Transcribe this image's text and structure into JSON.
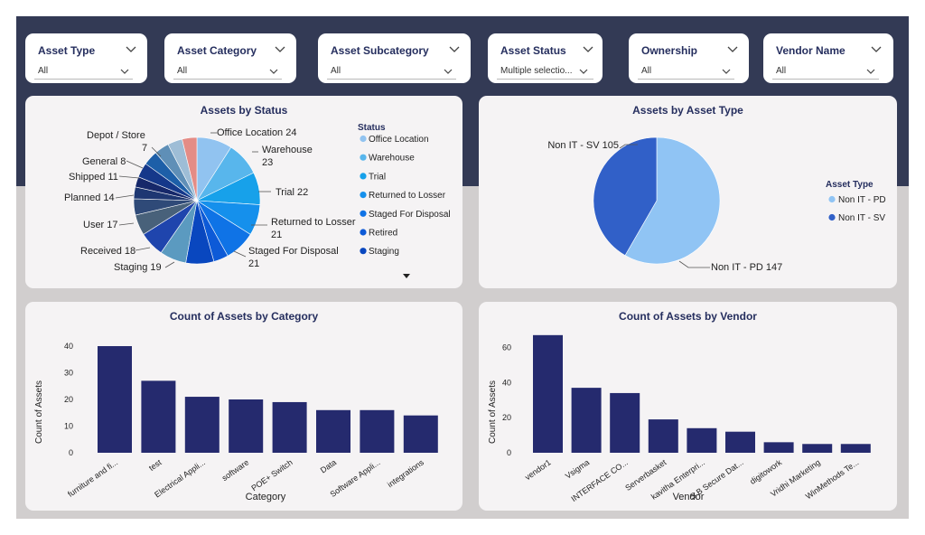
{
  "slicers": [
    {
      "title": "Asset Type",
      "value": "All"
    },
    {
      "title": "Asset Category",
      "value": "All"
    },
    {
      "title": "Asset Subcategory",
      "value": "All"
    },
    {
      "title": "Asset Status",
      "value": "Multiple selectio..."
    },
    {
      "title": "Ownership",
      "value": "All"
    },
    {
      "title": "Vendor Name",
      "value": "All"
    }
  ],
  "colors": {
    "bar": "#252a6e",
    "band": "#333a55",
    "canvas": "#d1cece",
    "panel": "#f5f3f4"
  },
  "chart_data": [
    {
      "type": "pie",
      "title": "Assets by Status",
      "legend_title": "Status",
      "legend_position": "right",
      "slices": [
        {
          "label": "Office Location",
          "value": 24,
          "color": "#91c3f0"
        },
        {
          "label": "Warehouse",
          "value": 23,
          "color": "#58b6ec"
        },
        {
          "label": "Trial",
          "value": 22,
          "color": "#17a1ea"
        },
        {
          "label": "Returned to Losser",
          "value": 21,
          "color": "#1590ec"
        },
        {
          "label": "Staged For Disposal",
          "value": 21,
          "color": "#0f73e6"
        },
        {
          "label": "Retired",
          "value": null,
          "color": "#0d5ad7"
        },
        {
          "label": "Staging",
          "value": 19,
          "color": "#0947bf"
        },
        {
          "label": "",
          "value": 18,
          "color": "#5b9ac0"
        },
        {
          "label": "",
          "value": 17,
          "color": "#1f45ad"
        },
        {
          "label": "",
          "value": 14,
          "color": "#48617a"
        },
        {
          "label": "",
          "value": 11,
          "color": "#2f4a78"
        },
        {
          "label": "",
          "value": 8,
          "color": "#1e3772"
        },
        {
          "label": "",
          "value": 7,
          "color": "#16286a"
        },
        {
          "label": "",
          "value": null,
          "color": "#15388a"
        },
        {
          "label": "",
          "value": null,
          "color": "#1d5fa8"
        },
        {
          "label": "",
          "value": null,
          "color": "#5f8fb7"
        },
        {
          "label": "",
          "value": null,
          "color": "#9ebdd6"
        },
        {
          "label": "",
          "value": null,
          "color": "#e48c86"
        }
      ],
      "data_labels": [
        {
          "text": "Office Location 24"
        },
        {
          "line1": "Warehouse",
          "line2": "23"
        },
        {
          "text": "Trial 22"
        },
        {
          "line1": "Returned to Losser",
          "line2": "21"
        },
        {
          "line1": "Staged For Disposal",
          "line2": "21"
        },
        {
          "text": "Staging 19"
        },
        {
          "text": "Received 18"
        },
        {
          "text": "User 17"
        },
        {
          "text": "Planned 14"
        },
        {
          "text": "Shipped 11"
        },
        {
          "text": "General 8"
        },
        {
          "line1": "Depot / Store",
          "line2": "7"
        }
      ],
      "legend": [
        "Office Location",
        "Warehouse",
        "Trial",
        "Returned to Losser",
        "Staged For Disposal",
        "Retired",
        "Staging"
      ]
    },
    {
      "type": "pie",
      "title": "Assets by Asset Type",
      "legend_title": "Asset Type",
      "legend_position": "right",
      "slices": [
        {
          "label": "Non IT - PD",
          "value": 147,
          "color": "#90c4f4"
        },
        {
          "label": "Non IT - SV",
          "value": 105,
          "color": "#3160c8"
        }
      ],
      "data_labels": [
        {
          "text": "Non IT - PD 147"
        },
        {
          "text": "Non IT - SV 105"
        }
      ],
      "legend": [
        "Non IT - PD",
        "Non IT - SV"
      ]
    },
    {
      "type": "bar",
      "title": "Count of Assets by Category",
      "xlabel": "Category",
      "ylabel": "Count of Assets",
      "ylim": [
        0,
        40
      ],
      "yticks": [
        0,
        10,
        20,
        30,
        40
      ],
      "categories": [
        "furniture and fi...",
        "test",
        "Electrical Appli...",
        "software",
        "POE+ Switch",
        "Data",
        "Software Appli...",
        "integrations"
      ],
      "values": [
        40,
        27,
        21,
        20,
        19,
        16,
        16,
        14
      ]
    },
    {
      "type": "bar",
      "title": "Count of Assets by Vendor",
      "xlabel": "Vendor",
      "ylabel": "Count of Assets",
      "ylim": [
        0,
        70
      ],
      "yticks": [
        0,
        20,
        40,
        60
      ],
      "categories": [
        "vendor1",
        "Vsigma",
        "INTERFACE CO...",
        "Serverbasket",
        "kavitha Enterpri...",
        "S B Secure Dat...",
        "digitowork",
        "Vridhi Marketing",
        "WinMethods Te..."
      ],
      "values": [
        67,
        37,
        34,
        19,
        14,
        12,
        6,
        5,
        5
      ]
    }
  ]
}
